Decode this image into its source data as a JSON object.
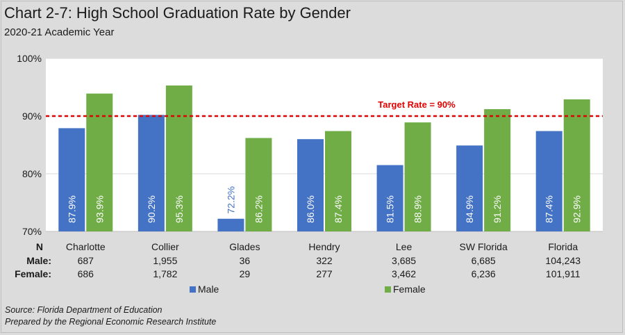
{
  "title": "Chart 2-7:  High School Graduation Rate by Gender",
  "subtitle": "2020-21 Academic Year",
  "source_line1": "Source:  Florida Department of Education",
  "source_line2": "Prepared by the Regional Economic Research Institute",
  "colors": {
    "male": "#4472c4",
    "female": "#70ad47",
    "target": "#e00000",
    "plot_bg": "#ffffff",
    "page_bg": "#dcdcdc"
  },
  "chart_data": {
    "type": "bar",
    "categories": [
      "Charlotte",
      "Collier",
      "Glades",
      "Hendry",
      "Lee",
      "SW Florida",
      "Florida"
    ],
    "series": [
      {
        "name": "Male",
        "values": [
          87.9,
          90.2,
          72.2,
          86.0,
          81.5,
          84.9,
          87.4
        ],
        "labels": [
          "87.9%",
          "90.2%",
          "72.2%",
          "86.0%",
          "81.5%",
          "84.9%",
          "87.4%"
        ]
      },
      {
        "name": "Female",
        "values": [
          93.9,
          95.3,
          86.2,
          87.4,
          88.9,
          91.2,
          92.9
        ],
        "labels": [
          "93.9%",
          "95.3%",
          "86.2%",
          "87.4%",
          "88.9%",
          "91.2%",
          "92.9%"
        ]
      }
    ],
    "ylim": [
      70,
      100
    ],
    "yticks": [
      70,
      80,
      90,
      100
    ],
    "ytick_labels": [
      "70%",
      "80%",
      "90%",
      "100%"
    ],
    "grid": true,
    "legend_placement": "bottom",
    "target": {
      "value": 90,
      "label": "Target Rate = 90%"
    },
    "table": {
      "header_label": "N",
      "rows": [
        {
          "label": "Male:",
          "values": [
            "687",
            "1,955",
            "36",
            "322",
            "3,685",
            "6,685",
            "104,243"
          ]
        },
        {
          "label": "Female:",
          "values": [
            "686",
            "1,782",
            "29",
            "277",
            "3,462",
            "6,236",
            "101,911"
          ]
        }
      ]
    }
  }
}
